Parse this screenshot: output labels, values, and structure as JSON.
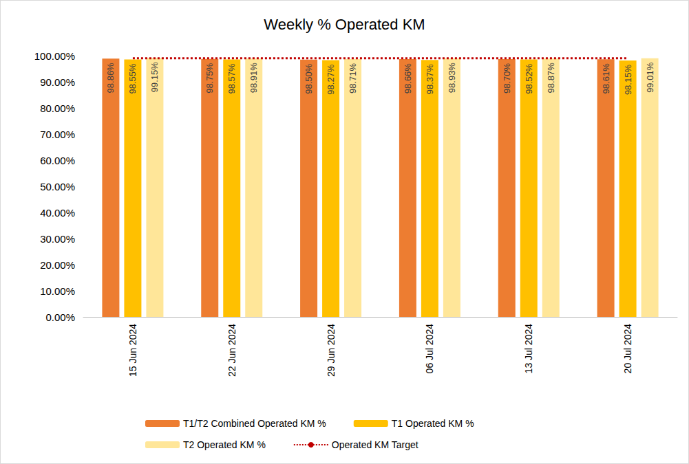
{
  "chart_data": {
    "type": "bar",
    "title": "Weekly % Operated KM",
    "categories": [
      "15 Jun 2024",
      "22 Jun 2024",
      "29 Jun 2024",
      "06 Jul 2024",
      "13 Jul 2024",
      "20 Jul 2024"
    ],
    "series": [
      {
        "name": "T1/T2 Combined Operated KM %",
        "type": "bar",
        "color": "#ed7d31",
        "values": [
          98.86,
          98.75,
          98.5,
          98.66,
          98.7,
          98.61
        ],
        "value_labels": [
          "98.86%",
          "98.75%",
          "98.50%",
          "98.66%",
          "98.70%",
          "98.61%"
        ]
      },
      {
        "name": "T1 Operated KM %",
        "type": "bar",
        "color": "#ffc000",
        "values": [
          98.55,
          98.57,
          98.27,
          98.37,
          98.52,
          98.15
        ],
        "value_labels": [
          "98.55%",
          "98.57%",
          "98.27%",
          "98.37%",
          "98.52%",
          "98.15%"
        ]
      },
      {
        "name": "T2 Operated KM %",
        "type": "bar",
        "color": "#ffe699",
        "values": [
          99.15,
          98.91,
          98.71,
          98.93,
          98.87,
          99.01
        ],
        "value_labels": [
          "99.15%",
          "98.91%",
          "98.71%",
          "98.93%",
          "98.87%",
          "99.01%"
        ]
      },
      {
        "name": "Operated KM Target",
        "type": "line",
        "color": "#c00000",
        "line_style": "dotted",
        "marker": "none",
        "values": [
          99,
          99,
          99,
          99,
          99,
          99
        ]
      }
    ],
    "ylim": [
      0,
      100
    ],
    "yticks": [
      {
        "value": 0,
        "label": "0.00%"
      },
      {
        "value": 10,
        "label": "10.00%"
      },
      {
        "value": 20,
        "label": "20.00%"
      },
      {
        "value": 30,
        "label": "30.00%"
      },
      {
        "value": 40,
        "label": "40.00%"
      },
      {
        "value": 50,
        "label": "50.00%"
      },
      {
        "value": 60,
        "label": "60.00%"
      },
      {
        "value": 70,
        "label": "70.00%"
      },
      {
        "value": 80,
        "label": "80.00%"
      },
      {
        "value": 90,
        "label": "90.00%"
      },
      {
        "value": 100,
        "label": "100.00%"
      }
    ],
    "grid": false,
    "data_labels": true,
    "legend": "bottom"
  }
}
